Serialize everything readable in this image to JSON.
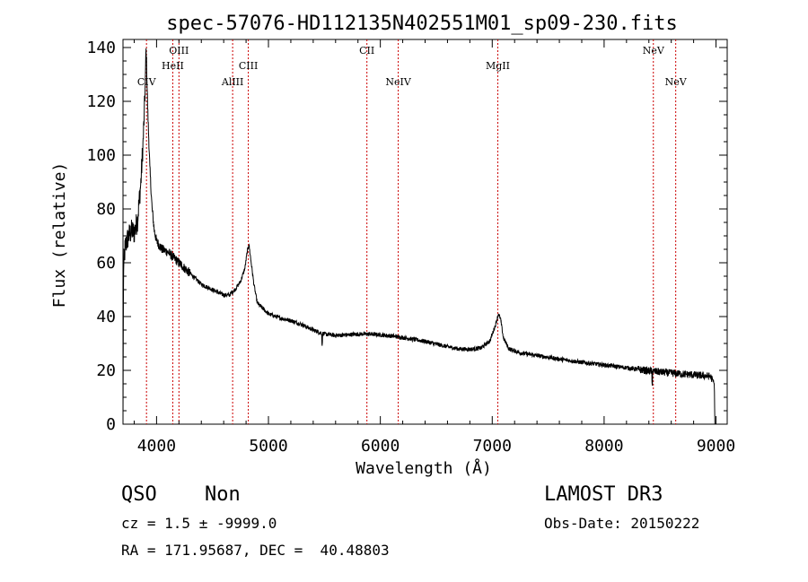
{
  "chart_data": {
    "type": "line",
    "title": "spec-57076-HD112135N402551M01_sp09-230.fits",
    "xlabel": "Wavelength (Å)",
    "ylabel": "Flux (relative)",
    "xlim": [
      3700,
      9100
    ],
    "ylim": [
      0,
      143
    ],
    "xticks": [
      4000,
      5000,
      6000,
      7000,
      8000,
      9000
    ],
    "yticks": [
      0,
      20,
      40,
      60,
      80,
      100,
      120,
      140
    ],
    "grid": false,
    "series": [
      {
        "name": "flux",
        "color": "#000000",
        "anchors": [
          [
            3700,
            0
          ],
          [
            3705,
            58
          ],
          [
            3720,
            66
          ],
          [
            3750,
            70
          ],
          [
            3780,
            72
          ],
          [
            3800,
            71
          ],
          [
            3830,
            76
          ],
          [
            3860,
            90
          ],
          [
            3880,
            105
          ],
          [
            3890,
            115
          ],
          [
            3900,
            128
          ],
          [
            3905,
            140
          ],
          [
            3910,
            135
          ],
          [
            3920,
            118
          ],
          [
            3940,
            95
          ],
          [
            3960,
            80
          ],
          [
            3980,
            72
          ],
          [
            4000,
            68
          ],
          [
            4050,
            65
          ],
          [
            4100,
            64
          ],
          [
            4150,
            62
          ],
          [
            4200,
            60
          ],
          [
            4300,
            56
          ],
          [
            4400,
            52
          ],
          [
            4500,
            50
          ],
          [
            4600,
            48
          ],
          [
            4650,
            48
          ],
          [
            4700,
            50
          ],
          [
            4750,
            53
          ],
          [
            4790,
            58
          ],
          [
            4810,
            64
          ],
          [
            4825,
            67
          ],
          [
            4840,
            62
          ],
          [
            4870,
            52
          ],
          [
            4900,
            45
          ],
          [
            5000,
            41
          ],
          [
            5100,
            39.5
          ],
          [
            5200,
            38.5
          ],
          [
            5300,
            37
          ],
          [
            5400,
            35
          ],
          [
            5500,
            33.5
          ],
          [
            5600,
            33
          ],
          [
            5700,
            33.2
          ],
          [
            5800,
            33.5
          ],
          [
            5900,
            33.5
          ],
          [
            6000,
            33.2
          ],
          [
            6100,
            32.8
          ],
          [
            6200,
            32.2
          ],
          [
            6300,
            31.5
          ],
          [
            6400,
            30.8
          ],
          [
            6500,
            29.8
          ],
          [
            6600,
            28.8
          ],
          [
            6700,
            28
          ],
          [
            6800,
            27.8
          ],
          [
            6900,
            28.3
          ],
          [
            6980,
            31
          ],
          [
            7030,
            37
          ],
          [
            7055,
            41
          ],
          [
            7075,
            39
          ],
          [
            7100,
            32
          ],
          [
            7150,
            28
          ],
          [
            7250,
            26.5
          ],
          [
            7400,
            25.5
          ],
          [
            7600,
            24.2
          ],
          [
            7800,
            23
          ],
          [
            8000,
            22
          ],
          [
            8200,
            21
          ],
          [
            8400,
            19.8
          ],
          [
            8600,
            19
          ],
          [
            8800,
            18.3
          ],
          [
            8950,
            17.8
          ],
          [
            8985,
            15
          ],
          [
            8990,
            0
          ]
        ]
      }
    ],
    "line_markers": [
      {
        "label": "CIV",
        "x": 3910,
        "row": 3
      },
      {
        "label": "HeII",
        "x": 4145,
        "row": 2
      },
      {
        "label": "OIII",
        "x": 4200,
        "row": 1
      },
      {
        "label": "AlIII",
        "x": 4680,
        "row": 3
      },
      {
        "label": "CIII",
        "x": 4820,
        "row": 2
      },
      {
        "label": "CII",
        "x": 5880,
        "row": 1
      },
      {
        "label": "NeIV",
        "x": 6160,
        "row": 3
      },
      {
        "label": "MgII",
        "x": 7050,
        "row": 2
      },
      {
        "label": "NeV",
        "x": 8440,
        "row": 1
      },
      {
        "label": "NeV",
        "x": 8640,
        "row": 3
      }
    ],
    "marker_color": "#cc0000"
  },
  "info": {
    "class": "QSO",
    "subclass": "Non",
    "survey": "LAMOST DR3",
    "cz": "cz = 1.5 ± -9999.0",
    "obs_date": "Obs-Date: 20150222",
    "radec": "RA = 171.95687, DEC =  40.48803"
  }
}
